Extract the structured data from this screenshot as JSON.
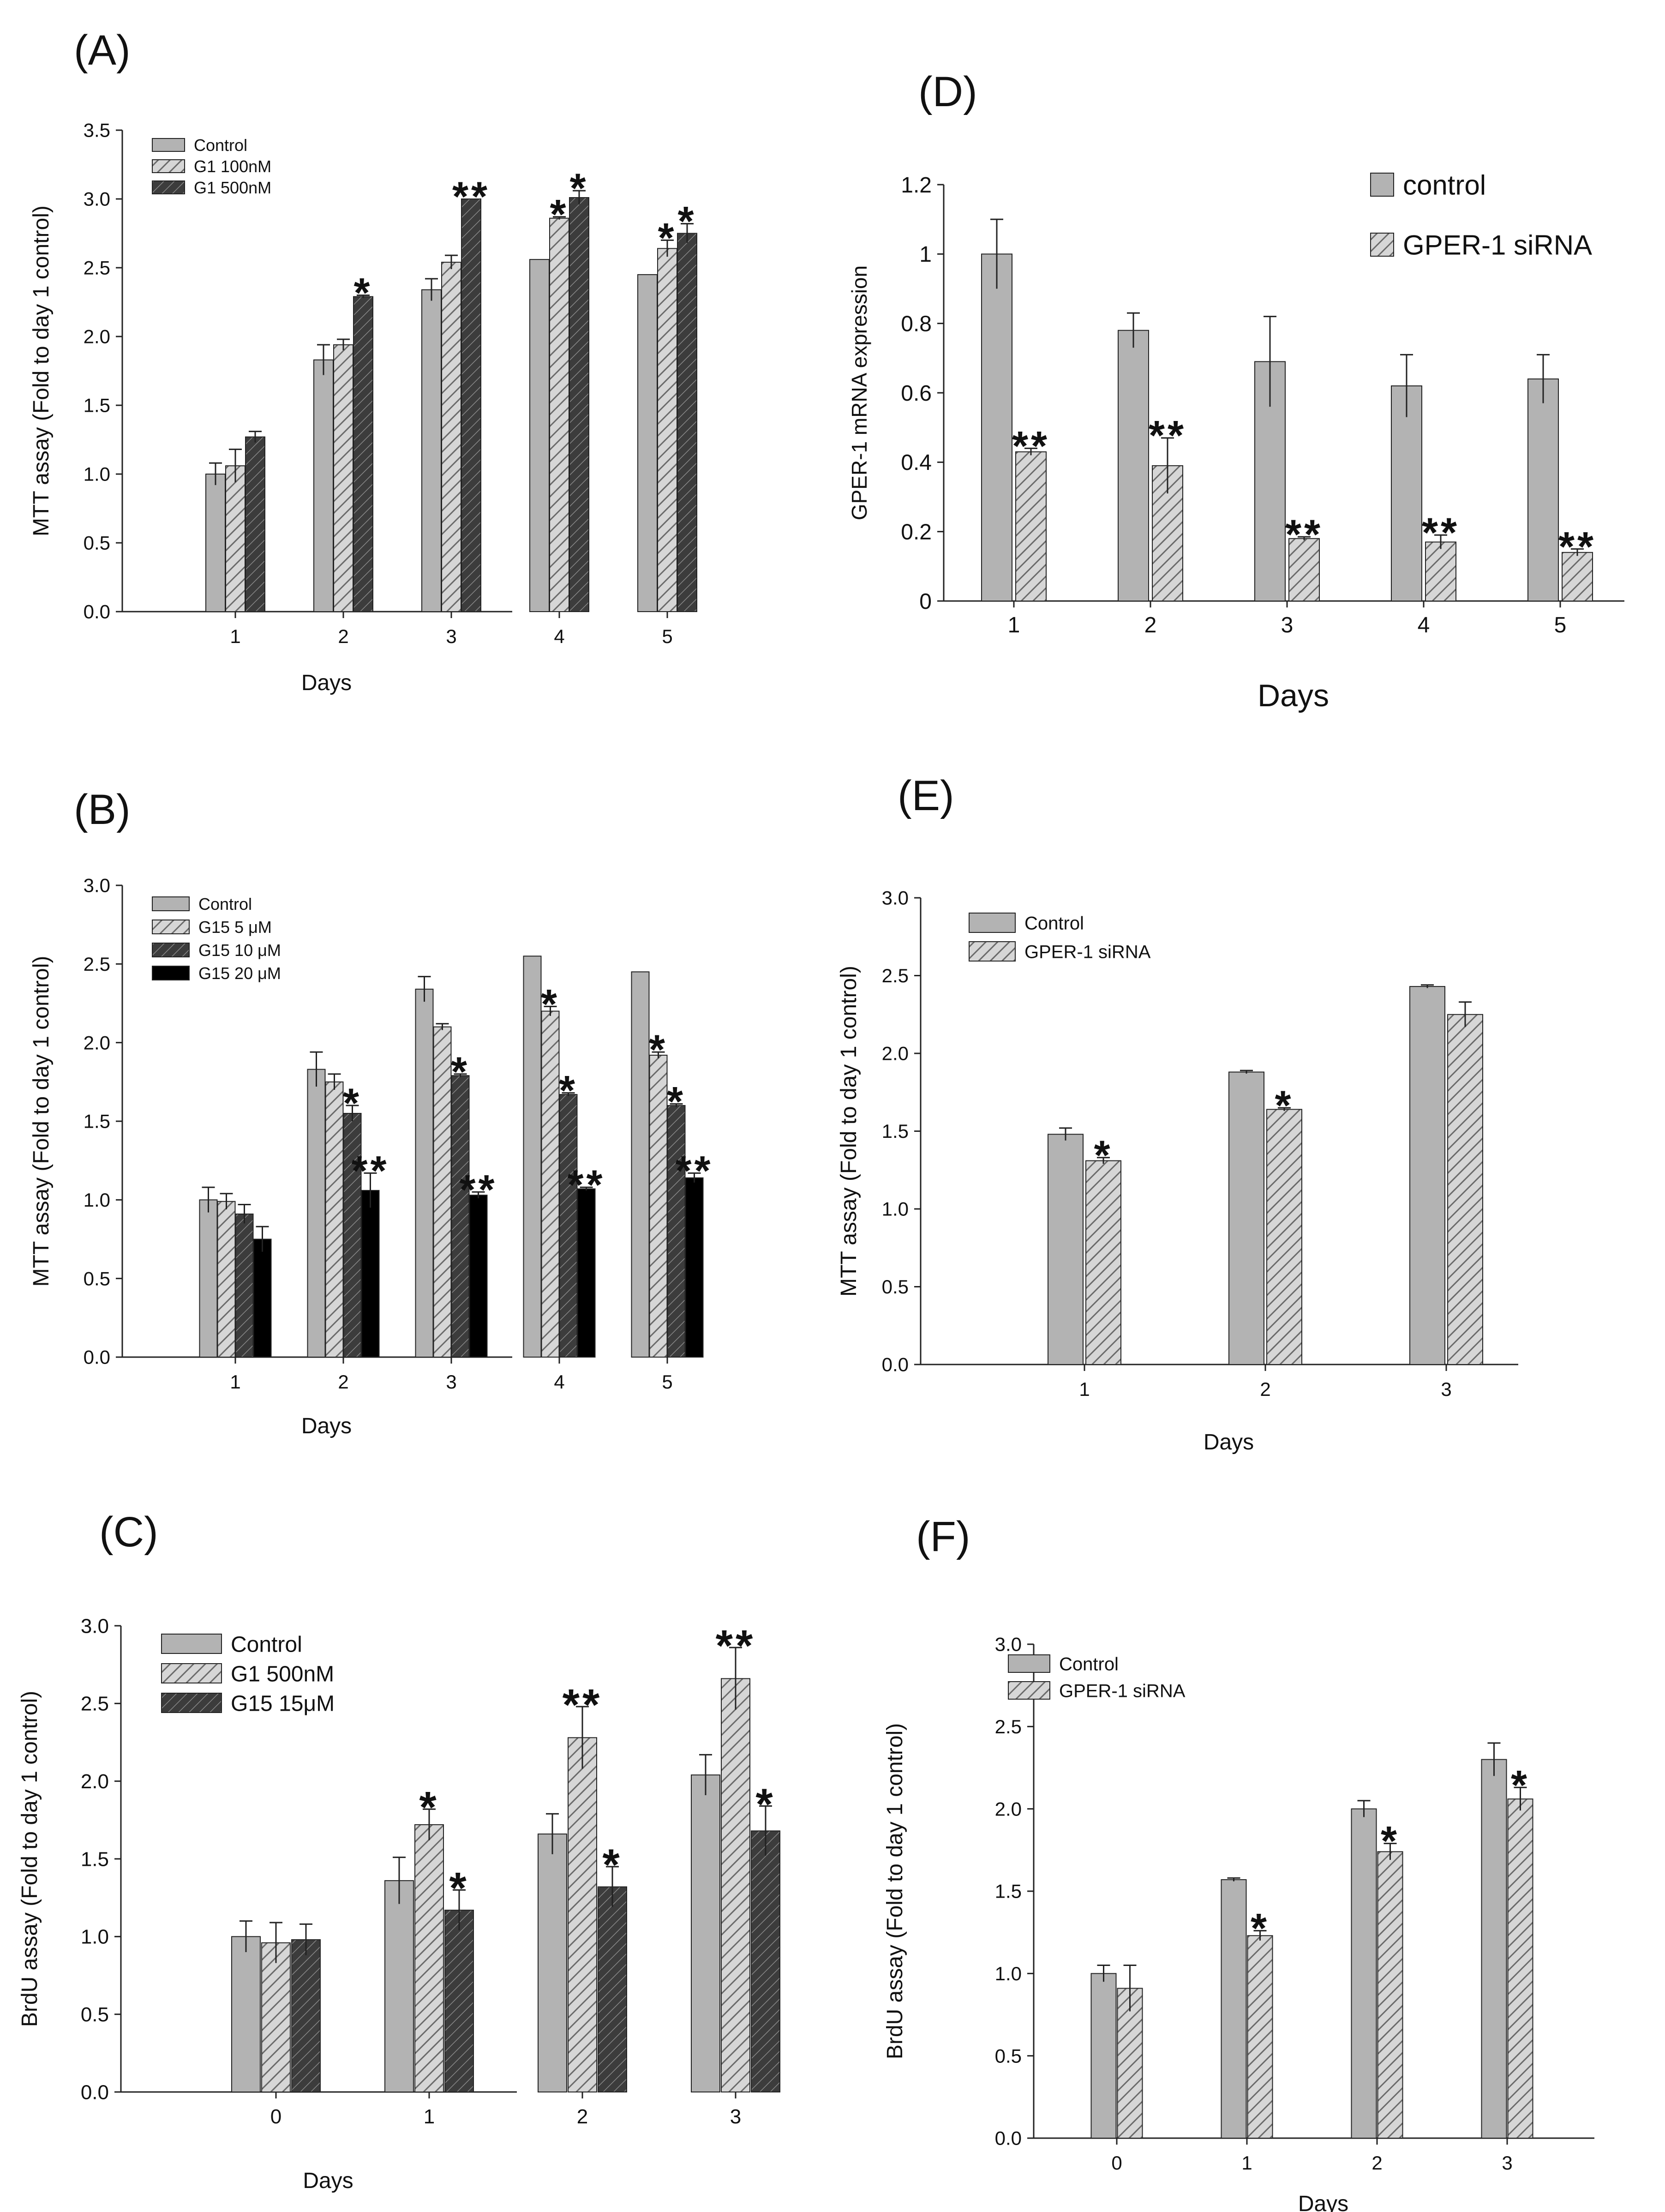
{
  "colors": {
    "control": "#b3b3b3",
    "hatch_light": "#c9c9c9",
    "hatch_dark": "#555555",
    "solid_black": "#000000",
    "stroke": "#222222"
  },
  "chart_data": [
    {
      "panel": "(A)",
      "type": "bar",
      "xlabel": "Days",
      "ylabel": "MTT assay (Fold to day 1 control)",
      "ylim": [
        0,
        3.5
      ],
      "yticks": [
        "0.0",
        "0.5",
        "1.0",
        "1.5",
        "2.0",
        "2.5",
        "3.0",
        "3.5"
      ],
      "categories": [
        "1",
        "2",
        "3",
        "4",
        "5"
      ],
      "legend_position": "top-left",
      "series": [
        {
          "name": "Control",
          "fill": "solid",
          "values": [
            1.0,
            1.83,
            2.34,
            2.56,
            2.45
          ],
          "errors": [
            0.08,
            0.11,
            0.08,
            0.0,
            0.0
          ]
        },
        {
          "name": "G1 100nM",
          "fill": "hatch-light",
          "values": [
            1.06,
            1.94,
            2.54,
            2.86,
            2.64
          ],
          "errors": [
            0.12,
            0.04,
            0.05,
            0.01,
            0.06
          ]
        },
        {
          "name": "G1 500nM",
          "fill": "hatch-dark",
          "values": [
            1.27,
            2.29,
            3.0,
            3.01,
            2.75
          ],
          "errors": [
            0.04,
            0.01,
            0.0,
            0.05,
            0.07
          ]
        }
      ],
      "significance": [
        [
          "",
          "",
          ""
        ],
        [
          "",
          "",
          "*"
        ],
        [
          "",
          "",
          "**"
        ],
        [
          "",
          "*",
          "*"
        ],
        [
          "",
          "*",
          "*"
        ]
      ]
    },
    {
      "panel": "(B)",
      "type": "bar",
      "xlabel": "Days",
      "ylabel": "MTT assay (Fold to day 1 control)",
      "ylim": [
        0,
        3.0
      ],
      "yticks": [
        "0.0",
        "0.5",
        "1.0",
        "1.5",
        "2.0",
        "2.5",
        "3.0"
      ],
      "categories": [
        "1",
        "2",
        "3",
        "4",
        "5"
      ],
      "legend_position": "top-left",
      "series": [
        {
          "name": "Control",
          "fill": "solid",
          "values": [
            1.0,
            1.83,
            2.34,
            2.55,
            2.45
          ],
          "errors": [
            0.08,
            0.11,
            0.08,
            0.0,
            0.0
          ]
        },
        {
          "name": "G15 5 μM",
          "fill": "hatch-light",
          "values": [
            0.99,
            1.75,
            2.1,
            2.2,
            1.92
          ],
          "errors": [
            0.05,
            0.05,
            0.02,
            0.03,
            0.02
          ]
        },
        {
          "name": "G15 10 μM",
          "fill": "hatch-dark",
          "values": [
            0.91,
            1.55,
            1.79,
            1.67,
            1.6
          ],
          "errors": [
            0.06,
            0.05,
            0.01,
            0.01,
            0.01
          ]
        },
        {
          "name": "G15 20 μM",
          "fill": "black",
          "values": [
            0.75,
            1.06,
            1.03,
            1.07,
            1.14
          ],
          "errors": [
            0.08,
            0.11,
            0.02,
            0.01,
            0.03
          ]
        }
      ],
      "significance": [
        [
          "",
          "",
          "",
          ""
        ],
        [
          "",
          "",
          "*",
          "**"
        ],
        [
          "",
          "",
          "*",
          "**"
        ],
        [
          "",
          "*",
          "*",
          "**"
        ],
        [
          "",
          "*",
          "*",
          "**"
        ]
      ]
    },
    {
      "panel": "(C)",
      "type": "bar",
      "xlabel": "Days",
      "ylabel": "BrdU assay (Fold to day 1 control)",
      "ylim": [
        0,
        3.0
      ],
      "yticks": [
        "0.0",
        "0.5",
        "1.0",
        "1.5",
        "2.0",
        "2.5",
        "3.0"
      ],
      "categories": [
        "0",
        "1",
        "2",
        "3"
      ],
      "legend_position": "top-left",
      "series": [
        {
          "name": "Control",
          "fill": "solid",
          "values": [
            1.0,
            1.36,
            1.66,
            2.04
          ],
          "errors": [
            0.1,
            0.15,
            0.13,
            0.13
          ]
        },
        {
          "name": "G1 500nM",
          "fill": "hatch-light",
          "values": [
            0.96,
            1.72,
            2.28,
            2.66
          ],
          "errors": [
            0.13,
            0.1,
            0.2,
            0.2
          ]
        },
        {
          "name": "G15 15μM",
          "fill": "hatch-dark",
          "values": [
            0.98,
            1.17,
            1.32,
            1.68
          ],
          "errors": [
            0.1,
            0.13,
            0.13,
            0.16
          ]
        }
      ],
      "significance": [
        [
          "",
          "",
          ""
        ],
        [
          "",
          "*",
          "*"
        ],
        [
          "",
          "**",
          "*"
        ],
        [
          "",
          "**",
          "*"
        ]
      ]
    },
    {
      "panel": "(D)",
      "type": "bar",
      "xlabel": "Days",
      "ylabel": "GPER-1 mRNA expression",
      "ylim": [
        0,
        1.2
      ],
      "yticks": [
        "0",
        "0.2",
        "0.4",
        "0.6",
        "0.8",
        "1",
        "1.2"
      ],
      "categories": [
        "1",
        "2",
        "3",
        "4",
        "5"
      ],
      "legend_position": "top-right",
      "series": [
        {
          "name": "control",
          "fill": "solid",
          "values": [
            1.0,
            0.78,
            0.69,
            0.62,
            0.64
          ],
          "errors": [
            0.1,
            0.05,
            0.13,
            0.09,
            0.07
          ]
        },
        {
          "name": "GPER-1 siRNA",
          "fill": "hatch-light",
          "values": [
            0.43,
            0.39,
            0.18,
            0.17,
            0.14
          ],
          "errors": [
            0.01,
            0.08,
            0.005,
            0.02,
            0.01
          ]
        }
      ],
      "significance": [
        [
          "",
          "**"
        ],
        [
          "",
          "**"
        ],
        [
          "",
          "**"
        ],
        [
          "",
          "**"
        ],
        [
          "",
          "**"
        ]
      ]
    },
    {
      "panel": "(E)",
      "type": "bar",
      "xlabel": "Days",
      "ylabel": "MTT assay (Fold to day 1 control)",
      "ylim": [
        0,
        3.0
      ],
      "yticks": [
        "0.0",
        "0.5",
        "1.0",
        "1.5",
        "2.0",
        "2.5",
        "3.0"
      ],
      "categories": [
        "1",
        "2",
        "3"
      ],
      "legend_position": "top-left",
      "series": [
        {
          "name": "Control",
          "fill": "solid",
          "values": [
            1.48,
            1.88,
            2.43
          ],
          "errors": [
            0.04,
            0.01,
            0.01
          ]
        },
        {
          "name": "GPER-1 siRNA",
          "fill": "hatch-light",
          "values": [
            1.31,
            1.64,
            2.25
          ],
          "errors": [
            0.02,
            0.01,
            0.08
          ]
        }
      ],
      "significance": [
        [
          "",
          "*"
        ],
        [
          "",
          "*"
        ],
        [
          "",
          ""
        ]
      ]
    },
    {
      "panel": "(F)",
      "type": "bar",
      "xlabel": "Days",
      "ylabel": "BrdU assay (Fold to day 1 control)",
      "ylim": [
        0,
        3.0
      ],
      "yticks": [
        "0.0",
        "0.5",
        "1.0",
        "1.5",
        "2.0",
        "2.5",
        "3.0"
      ],
      "categories": [
        "0",
        "1",
        "2",
        "3"
      ],
      "legend_position": "top-left",
      "series": [
        {
          "name": "Control",
          "fill": "solid",
          "values": [
            1.0,
            1.57,
            2.0,
            2.3
          ],
          "errors": [
            0.05,
            0.01,
            0.05,
            0.1
          ]
        },
        {
          "name": "GPER-1 siRNA",
          "fill": "hatch-light",
          "values": [
            0.91,
            1.23,
            1.74,
            2.06
          ],
          "errors": [
            0.14,
            0.03,
            0.05,
            0.07
          ]
        }
      ],
      "significance": [
        [
          "",
          ""
        ],
        [
          "",
          "*"
        ],
        [
          "",
          "*"
        ],
        [
          "",
          "*"
        ]
      ]
    }
  ]
}
